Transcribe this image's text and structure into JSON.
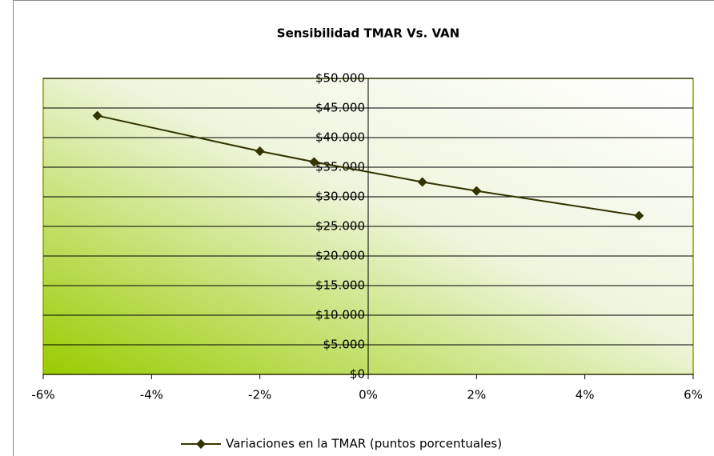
{
  "chart_data": {
    "type": "line",
    "title": "Sensibilidad TMAR Vs. VAN",
    "x": [
      -5,
      -2,
      -1,
      1,
      2,
      5
    ],
    "series": [
      {
        "name": "Variaciones en la TMAR (puntos porcentuales)",
        "color": "#333300",
        "values": [
          43700,
          37700,
          35900,
          32500,
          31000,
          26800
        ]
      }
    ],
    "xlim": [
      -6,
      6
    ],
    "xticks": [
      {
        "value": -6,
        "label": "-6%"
      },
      {
        "value": -4,
        "label": "-4%"
      },
      {
        "value": -2,
        "label": "-2%"
      },
      {
        "value": 0,
        "label": "0%"
      },
      {
        "value": 2,
        "label": "2%"
      },
      {
        "value": 4,
        "label": "4%"
      },
      {
        "value": 6,
        "label": "6%"
      }
    ],
    "ylim": [
      0,
      50000
    ],
    "yticks": [
      {
        "value": 0,
        "label": "$0"
      },
      {
        "value": 5000,
        "label": "$5.000"
      },
      {
        "value": 10000,
        "label": "$10.000"
      },
      {
        "value": 15000,
        "label": "$15.000"
      },
      {
        "value": 20000,
        "label": "$20.000"
      },
      {
        "value": 25000,
        "label": "$25.000"
      },
      {
        "value": 30000,
        "label": "$30.000"
      },
      {
        "value": 35000,
        "label": "$35.000"
      },
      {
        "value": 40000,
        "label": "$40.000"
      },
      {
        "value": 45000,
        "label": "$45.000"
      },
      {
        "value": 50000,
        "label": "$50.000"
      }
    ],
    "grid": true,
    "legend": "bottom"
  }
}
